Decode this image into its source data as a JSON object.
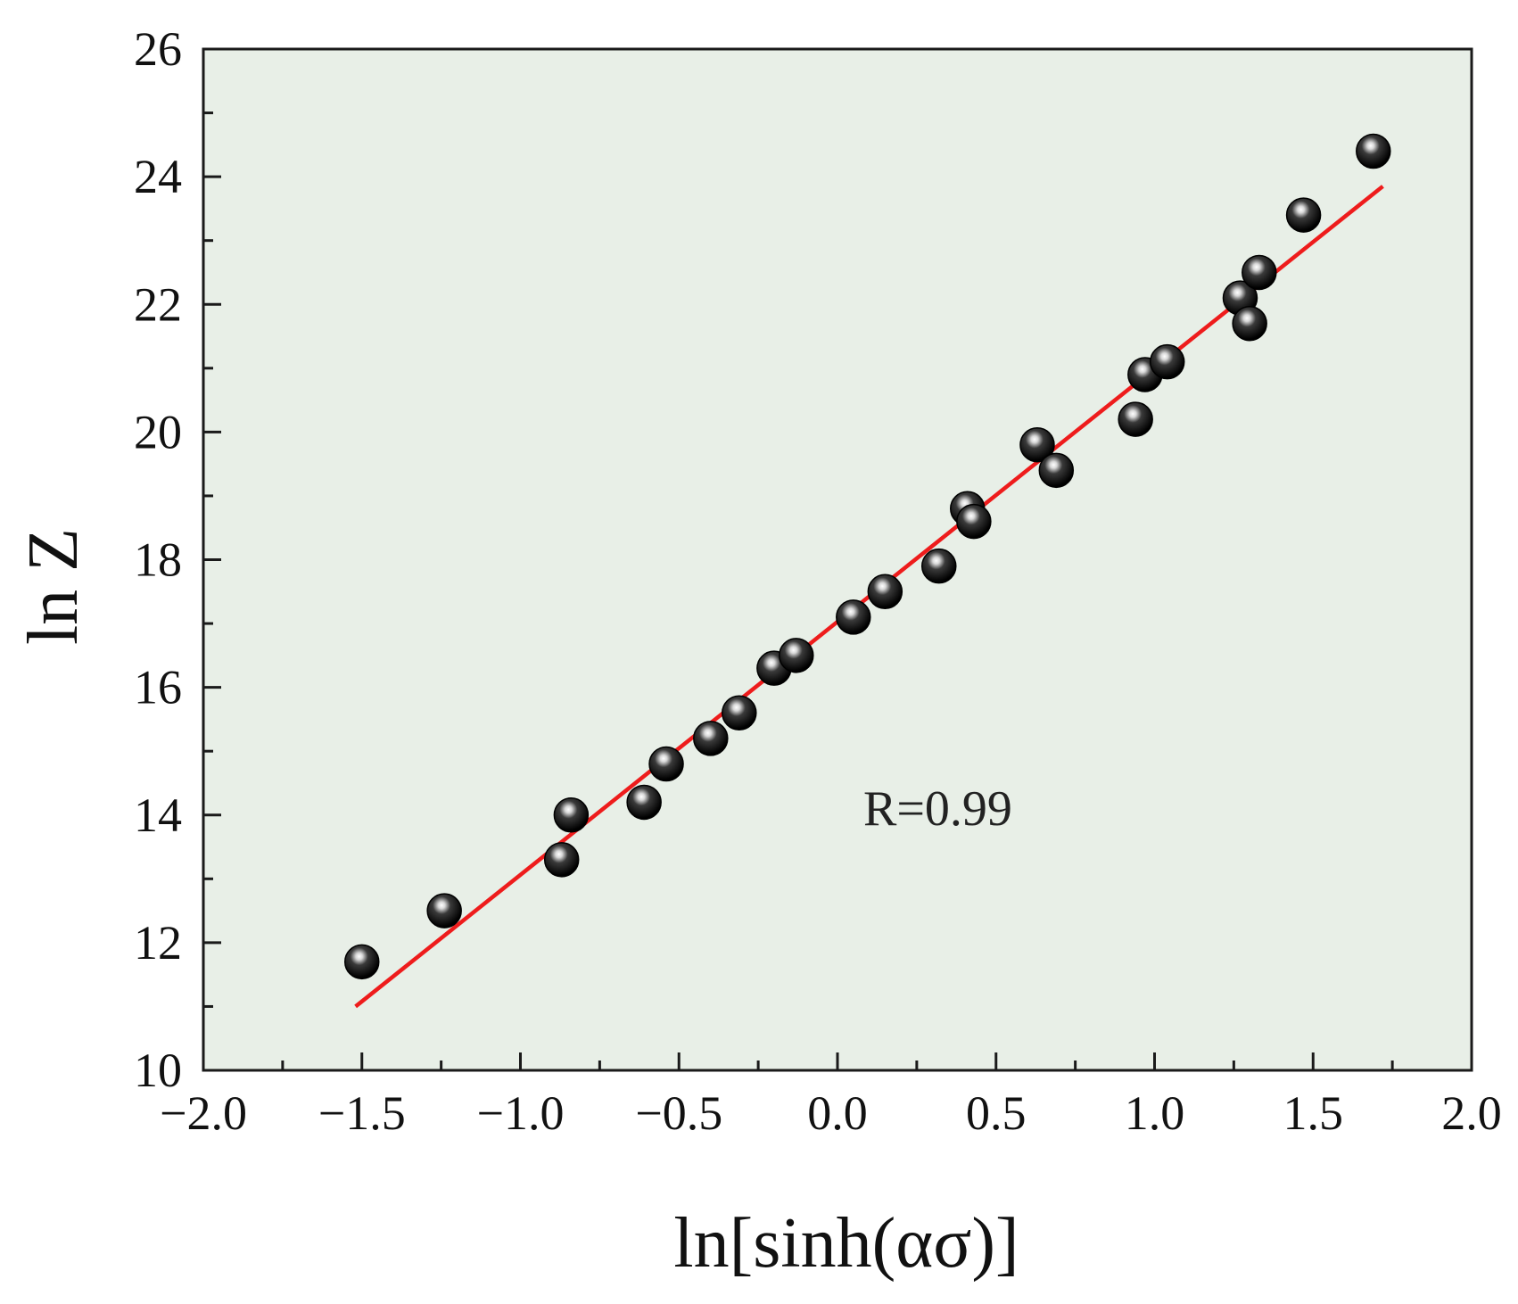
{
  "chart_data": {
    "type": "scatter",
    "xlabel": "ln[sinh(ασ)]",
    "ylabel": "ln Z",
    "xlim": [
      -2.0,
      2.0
    ],
    "ylim": [
      10,
      26
    ],
    "x_ticks": [
      -2.0,
      -1.5,
      -1.0,
      -0.5,
      0.0,
      0.5,
      1.0,
      1.5,
      2.0
    ],
    "x_tick_labels": [
      "−2.0",
      "−1.5",
      "−1.0",
      "−0.5",
      "0.0",
      "0.5",
      "1.0",
      "1.5",
      "2.0"
    ],
    "y_ticks": [
      10,
      12,
      14,
      16,
      18,
      20,
      22,
      24,
      26
    ],
    "y_tick_labels": [
      "10",
      "12",
      "14",
      "16",
      "18",
      "20",
      "22",
      "24",
      "26"
    ],
    "grid": false,
    "plot_background": "#e8efe7",
    "annotation": "R=0.99",
    "series": [
      {
        "type": "scatter",
        "color": "#000000",
        "x": [
          -1.5,
          -1.24,
          -0.87,
          -0.84,
          -0.61,
          -0.54,
          -0.4,
          -0.31,
          -0.2,
          -0.13,
          0.05,
          0.15,
          0.32,
          0.41,
          0.43,
          0.63,
          0.69,
          0.94,
          0.97,
          1.04,
          1.27,
          1.3,
          1.33,
          1.47,
          1.69
        ],
        "y": [
          11.7,
          12.5,
          13.3,
          14.0,
          14.2,
          14.8,
          15.2,
          15.6,
          16.3,
          16.5,
          17.1,
          17.5,
          17.9,
          18.8,
          18.6,
          19.8,
          19.4,
          20.2,
          20.9,
          21.1,
          22.1,
          21.7,
          22.5,
          23.4,
          24.4
        ]
      },
      {
        "type": "line",
        "color": "#ee1c1c",
        "x": [
          -1.52,
          1.72
        ],
        "y": [
          11.0,
          23.85
        ]
      }
    ]
  }
}
